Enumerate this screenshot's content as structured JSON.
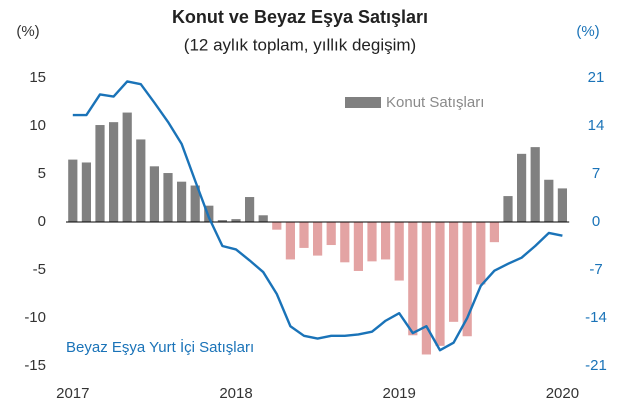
{
  "chart_data": {
    "type": "bar_line",
    "title": "Konut ve Beyaz Eşya Satışları",
    "subtitle": "(12 aylık toplam, yıllık degişim)",
    "y_label": "(%)",
    "y2_label": "(%)",
    "categories": [
      "2017",
      null,
      null,
      null,
      null,
      null,
      null,
      null,
      null,
      null,
      null,
      null,
      "2018",
      null,
      null,
      null,
      null,
      null,
      null,
      null,
      null,
      null,
      null,
      null,
      "2019",
      null,
      null,
      null,
      null,
      null,
      null,
      null,
      null,
      null,
      null,
      null,
      "2020"
    ],
    "ylim": [
      -15,
      15
    ],
    "yticks": [
      -15,
      -10,
      -5,
      0,
      5,
      10,
      15
    ],
    "y2lim": [
      -21,
      21
    ],
    "y2ticks": [
      -21,
      -14,
      -7,
      0,
      7,
      14,
      21
    ],
    "legend": "upper right",
    "series": [
      {
        "name": "Konut Satışları",
        "type": "bar",
        "color": "#808080",
        "negative_color": "#e3a3a3",
        "values": [
          6.5,
          6.2,
          10.1,
          10.4,
          11.4,
          8.6,
          5.8,
          5.1,
          4.2,
          3.8,
          1.7,
          0.2,
          0.3,
          2.6,
          0.7,
          -0.8,
          -3.9,
          -2.7,
          -3.5,
          -2.4,
          -4.2,
          -5.1,
          -4.1,
          -3.9,
          -6.1,
          -11.8,
          -13.8,
          -12.9,
          -10.4,
          -11.9,
          -6.5,
          -2.1,
          2.7,
          7.1,
          7.8,
          4.4,
          3.5
        ]
      },
      {
        "name": "Beyaz Eşya Yurt İçi Satışları",
        "type": "line",
        "axis": "y2",
        "color": "#1a73b8",
        "values": [
          15.6,
          15.6,
          18.6,
          18.3,
          20.5,
          20.1,
          17.4,
          14.6,
          11.4,
          6.0,
          0.7,
          -3.5,
          -4.0,
          -5.6,
          -7.3,
          -10.5,
          -15.2,
          -16.6,
          -17.0,
          -16.6,
          -16.6,
          -16.4,
          -16.0,
          -14.4,
          -13.3,
          -16.2,
          -15.2,
          -18.7,
          -17.6,
          -14.0,
          -9.3,
          -7.1,
          -6.1,
          -5.2,
          -3.5,
          -1.6,
          -2.0
        ]
      }
    ]
  }
}
